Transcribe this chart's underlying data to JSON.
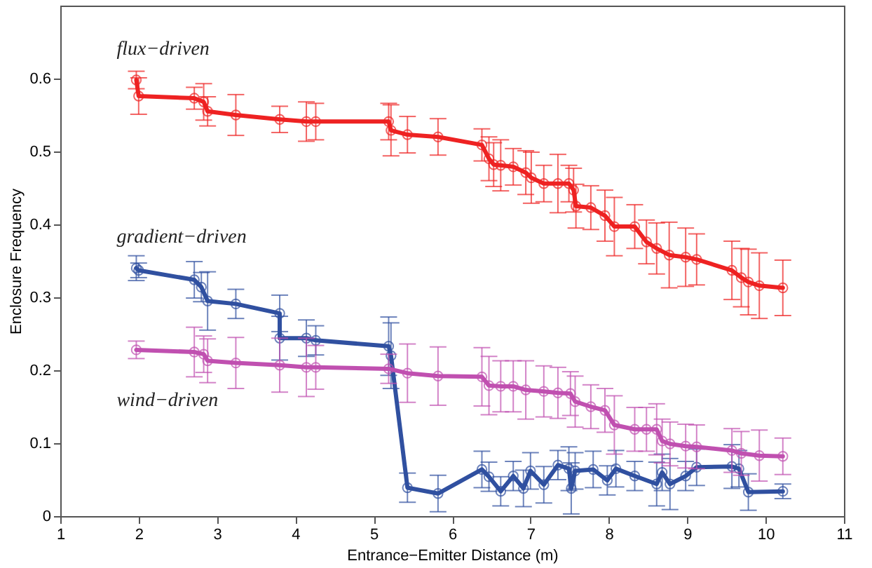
{
  "chart_data": {
    "type": "line",
    "xlabel": "Entrance−Emitter Distance (m)",
    "ylabel": "Enclosure Frequency",
    "xlim": [
      1,
      11
    ],
    "xticks": [
      1,
      2,
      3,
      4,
      5,
      6,
      7,
      8,
      9,
      10,
      11
    ],
    "ylim": [
      0,
      0.7
    ],
    "yticks": [
      0,
      0.1,
      0.2,
      0.3,
      0.4,
      0.5,
      0.6
    ],
    "grid": false,
    "legend": false,
    "marker": "circle",
    "line_style": "solid",
    "series": [
      {
        "name": "flux−driven",
        "color": "#ee2222",
        "x": [
          1.97,
          2.0,
          2.71,
          2.83,
          2.88,
          3.24,
          3.8,
          4.14,
          4.26,
          5.19,
          5.22,
          5.43,
          5.82,
          6.38,
          6.47,
          6.53,
          6.62,
          6.78,
          6.94,
          7.01,
          7.17,
          7.35,
          7.49,
          7.55,
          7.58,
          7.77,
          7.95,
          8.07,
          8.33,
          8.48,
          8.61,
          8.77,
          8.98,
          9.12,
          9.57,
          9.69,
          9.78,
          9.92,
          10.22
        ],
        "values": [
          0.598,
          0.576,
          0.573,
          0.568,
          0.555,
          0.55,
          0.544,
          0.541,
          0.541,
          0.541,
          0.529,
          0.523,
          0.52,
          0.509,
          0.49,
          0.482,
          0.481,
          0.479,
          0.471,
          0.464,
          0.456,
          0.456,
          0.456,
          0.447,
          0.425,
          0.423,
          0.412,
          0.397,
          0.397,
          0.376,
          0.367,
          0.358,
          0.355,
          0.352,
          0.337,
          0.327,
          0.321,
          0.316,
          0.313
        ],
        "errors": [
          0.012,
          0.025,
          0.015,
          0.025,
          0.02,
          0.028,
          0.018,
          0.027,
          0.025,
          0.025,
          0.035,
          0.025,
          0.025,
          0.022,
          0.03,
          0.03,
          0.035,
          0.025,
          0.03,
          0.035,
          0.025,
          0.04,
          0.025,
          0.03,
          0.03,
          0.03,
          0.035,
          0.04,
          0.03,
          0.03,
          0.035,
          0.045,
          0.04,
          0.035,
          0.04,
          0.04,
          0.045,
          0.045,
          0.038
        ]
      },
      {
        "name": "gradient−driven",
        "color": "#3050a0",
        "x": [
          1.97,
          2.0,
          2.71,
          2.8,
          2.88,
          3.24,
          3.8,
          3.8,
          4.14,
          4.26,
          5.19,
          5.22,
          5.43,
          5.82,
          6.38,
          6.47,
          6.62,
          6.78,
          6.91,
          7.0,
          7.17,
          7.35,
          7.49,
          7.52,
          7.57,
          7.8,
          7.98,
          8.09,
          8.33,
          8.61,
          8.68,
          8.78,
          8.98,
          9.12,
          9.57,
          9.66,
          9.78,
          10.22
        ],
        "values": [
          0.34,
          0.337,
          0.324,
          0.314,
          0.295,
          0.291,
          0.278,
          0.244,
          0.244,
          0.241,
          0.233,
          0.22,
          0.039,
          0.031,
          0.064,
          0.054,
          0.034,
          0.055,
          0.038,
          0.062,
          0.043,
          0.07,
          0.065,
          0.038,
          0.062,
          0.064,
          0.049,
          0.065,
          0.055,
          0.044,
          0.06,
          0.044,
          0.055,
          0.067,
          0.068,
          0.065,
          0.033,
          0.034
        ],
        "errors": [
          0.017,
          0.01,
          0.025,
          0.02,
          0.04,
          0.02,
          0.025,
          0.03,
          0.025,
          0.02,
          0.04,
          0.045,
          0.02,
          0.025,
          0.025,
          0.02,
          0.02,
          0.02,
          0.025,
          0.025,
          0.025,
          0.02,
          0.03,
          0.035,
          0.025,
          0.025,
          0.02,
          0.025,
          0.02,
          0.03,
          0.025,
          0.035,
          0.02,
          0.025,
          0.03,
          0.025,
          0.025,
          0.01
        ]
      },
      {
        "name": "wind−driven",
        "color": "#c050b0",
        "x": [
          1.97,
          2.71,
          2.83,
          2.88,
          3.24,
          3.8,
          4.14,
          4.26,
          5.19,
          5.43,
          5.82,
          6.38,
          6.47,
          6.62,
          6.78,
          6.94,
          7.17,
          7.35,
          7.51,
          7.57,
          7.77,
          7.95,
          8.07,
          8.33,
          8.48,
          8.61,
          8.68,
          8.78,
          8.98,
          9.12,
          9.57,
          9.69,
          9.92,
          10.22
        ],
        "values": [
          0.228,
          0.225,
          0.222,
          0.213,
          0.21,
          0.207,
          0.204,
          0.204,
          0.202,
          0.196,
          0.192,
          0.191,
          0.179,
          0.178,
          0.178,
          0.173,
          0.171,
          0.169,
          0.168,
          0.157,
          0.15,
          0.145,
          0.125,
          0.119,
          0.119,
          0.119,
          0.103,
          0.099,
          0.096,
          0.095,
          0.09,
          0.086,
          0.083,
          0.082
        ],
        "errors": [
          0.012,
          0.034,
          0.025,
          0.03,
          0.035,
          0.037,
          0.04,
          0.03,
          0.02,
          0.04,
          0.04,
          0.04,
          0.04,
          0.035,
          0.035,
          0.04,
          0.035,
          0.035,
          0.03,
          0.035,
          0.03,
          0.03,
          0.04,
          0.03,
          0.03,
          0.035,
          0.03,
          0.03,
          0.03,
          0.03,
          0.03,
          0.03,
          0.035,
          0.025
        ]
      }
    ]
  }
}
